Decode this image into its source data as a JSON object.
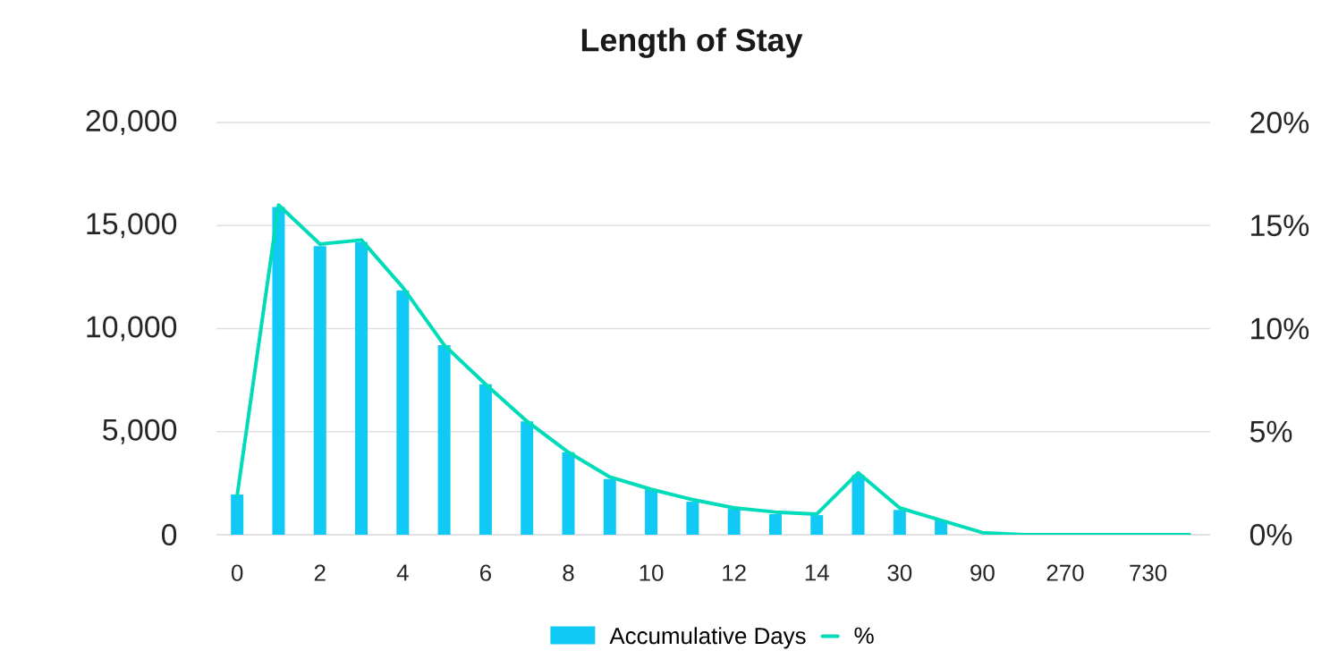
{
  "chart_data": {
    "type": "bar",
    "title": "Length of Stay",
    "categories": [
      "0",
      null,
      "2",
      null,
      "4",
      null,
      "6",
      null,
      "8",
      null,
      "10",
      null,
      "12",
      null,
      "14",
      null,
      "30",
      null,
      "90",
      null,
      "270",
      null,
      "730",
      null
    ],
    "series": [
      {
        "name": "Accumulative Days",
        "color": "#10c9f5",
        "values": [
          1950,
          15900,
          14000,
          14200,
          11850,
          9200,
          7300,
          5500,
          4000,
          2700,
          2200,
          1600,
          1250,
          1000,
          950,
          2900,
          1200,
          700,
          0,
          0,
          0,
          0,
          0,
          0
        ]
      },
      {
        "name": "%",
        "type": "line",
        "axis": "y2",
        "color": "#00dcb9",
        "values": [
          1.9,
          16.0,
          14.1,
          14.3,
          12.0,
          9.2,
          7.3,
          5.5,
          4.0,
          2.8,
          2.2,
          1.7,
          1.3,
          1.1,
          1.0,
          3.0,
          1.3,
          0.7,
          0.1,
          0,
          0,
          0,
          0,
          0
        ]
      }
    ],
    "ylim": [
      0,
      20000
    ],
    "yticks": [
      0,
      {
        "value": 5000,
        "label": "5,000"
      },
      {
        "value": 10000,
        "label": "10,000"
      },
      {
        "value": 15000,
        "label": "15,000"
      },
      {
        "value": 20000,
        "label": "20,000"
      }
    ],
    "y2lim": [
      0,
      20
    ],
    "y2ticks": [
      {
        "value": 0,
        "label": "0%"
      },
      {
        "value": 5,
        "label": "5%"
      },
      {
        "value": 10,
        "label": "10%"
      },
      {
        "value": 15,
        "label": "15%"
      },
      {
        "value": 20,
        "label": "20%"
      }
    ],
    "grid": "y",
    "legend": "bottom"
  }
}
